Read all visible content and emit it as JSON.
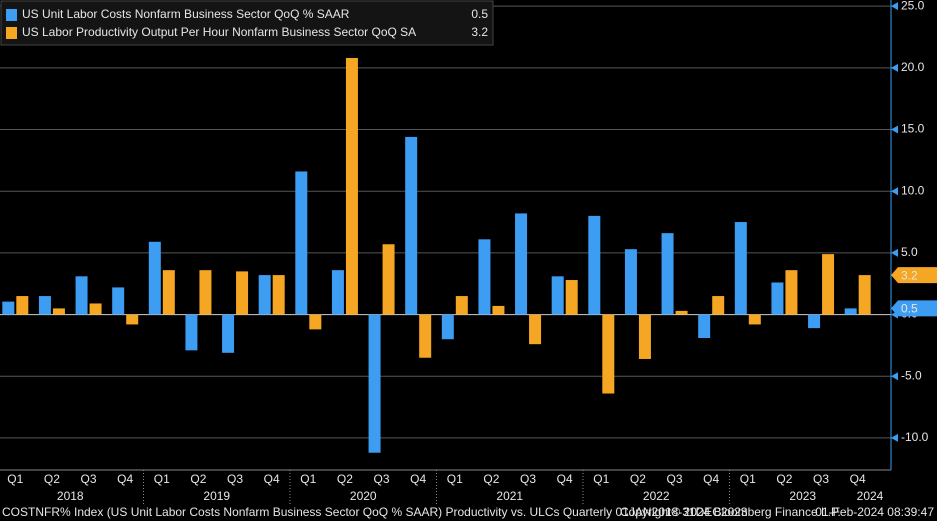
{
  "chart_data": {
    "type": "bar",
    "categories": [
      "Q1",
      "Q2",
      "Q3",
      "Q4",
      "Q1",
      "Q2",
      "Q3",
      "Q4",
      "Q1",
      "Q2",
      "Q3",
      "Q4",
      "Q1",
      "Q2",
      "Q3",
      "Q4",
      "Q1",
      "Q2",
      "Q3",
      "Q4",
      "Q1",
      "Q2",
      "Q3",
      "Q4"
    ],
    "years": [
      "2018",
      "2019",
      "2020",
      "2021",
      "2022",
      "2023",
      "2024"
    ],
    "series": [
      {
        "name": "US Unit Labor Costs Nonfarm Business Sector QoQ % SAAR",
        "color": "#3d9df3",
        "values": [
          1.05,
          1.5,
          3.1,
          2.2,
          5.9,
          -2.9,
          -3.1,
          3.2,
          11.6,
          3.6,
          -11.2,
          14.4,
          -2.0,
          6.1,
          8.2,
          3.1,
          8.0,
          5.3,
          6.6,
          -1.9,
          7.5,
          2.6,
          -1.1,
          0.5
        ]
      },
      {
        "name": "US Labor Productivity Output Per Hour Nonfarm Business Sector QoQ SA",
        "color": "#f5a623",
        "values": [
          1.5,
          0.5,
          0.9,
          -0.8,
          3.6,
          3.6,
          3.5,
          3.2,
          -1.2,
          20.8,
          5.7,
          -3.5,
          1.5,
          0.7,
          -2.4,
          2.8,
          -6.4,
          -3.6,
          0.3,
          1.5,
          -0.8,
          3.6,
          4.9,
          3.2
        ]
      }
    ],
    "ylim": [
      -12.6,
      25.5
    ],
    "yticks": [
      {
        "value": -10,
        "label": "-10.0"
      },
      {
        "value": -5,
        "label": "-5.0"
      },
      {
        "value": 0,
        "label": "0.0"
      },
      {
        "value": 5,
        "label": "5.0"
      },
      {
        "value": 10,
        "label": "10.0"
      },
      {
        "value": 15,
        "label": "15.0"
      },
      {
        "value": 20,
        "label": "20.0"
      },
      {
        "value": 25,
        "label": "25.0"
      }
    ],
    "grid": true,
    "footer": {
      "source": "COSTNFR% Index (US Unit Labor Costs Nonfarm Business Sector QoQ % SAAR) Productivity vs. ULCs  Quarterly 01JAN2018-31DEC2023",
      "copyright": "Copyright© 2024 Bloomberg Finance L.P.",
      "timestamp": "01-Feb-2024 08:39:47"
    }
  }
}
